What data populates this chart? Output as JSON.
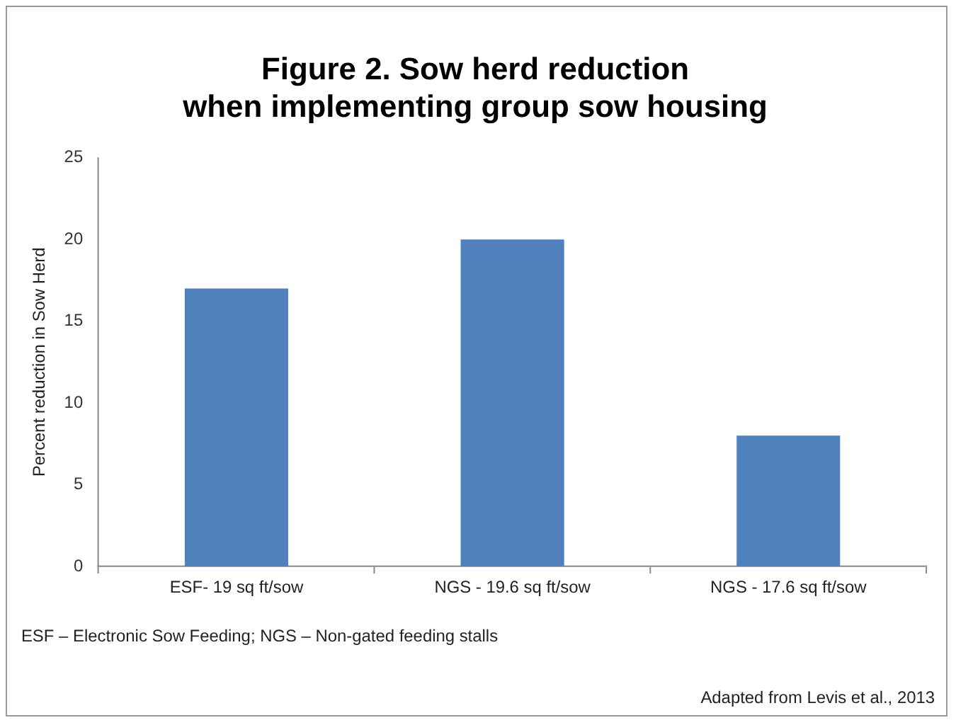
{
  "chart_data": {
    "type": "bar",
    "title": "Figure 2. Sow herd reduction when implementing group sow housing",
    "ylabel": "Percent reduction in Sow Herd",
    "categories": [
      "ESF- 19 sq ft/sow",
      "NGS - 19.6 sq ft/sow",
      "NGS - 17.6 sq ft/sow"
    ],
    "values": [
      17,
      20,
      8
    ],
    "color": "#4f81bd",
    "ylim": [
      0,
      25
    ],
    "yticks": [
      0,
      5,
      10,
      15,
      20,
      25
    ],
    "grid": false,
    "legend": false,
    "annotations": [
      "ESF – Electronic Sow Feeding; NGS – Non-gated feeding stalls",
      "Adapted from Levis et al., 2013"
    ]
  }
}
